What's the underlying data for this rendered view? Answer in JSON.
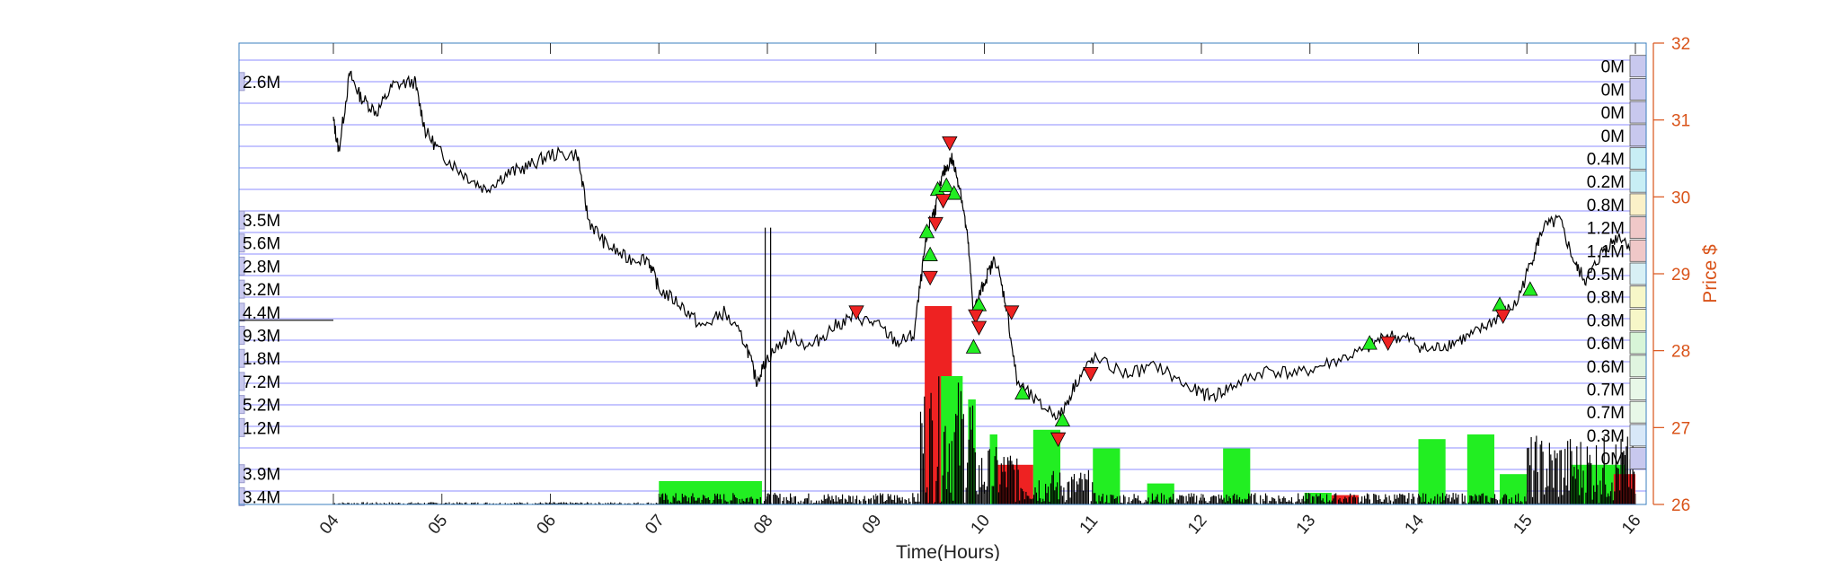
{
  "chart_data": {
    "type": "line",
    "xlabel": "Time(Hours)",
    "ylabel_right": "Price $",
    "x_ticks": [
      "04",
      "05",
      "06",
      "07",
      "08",
      "09",
      "10",
      "11",
      "12",
      "13",
      "14",
      "15",
      "16"
    ],
    "y_ticks_right": [
      "32",
      "31",
      "30",
      "29",
      "28",
      "27",
      "26"
    ],
    "ylim": [
      26,
      32
    ],
    "grid": true,
    "price_series": {
      "name": "",
      "points": [
        [
          4.0,
          31.0
        ],
        [
          4.05,
          30.6
        ],
        [
          4.15,
          31.6
        ],
        [
          4.25,
          31.3
        ],
        [
          4.4,
          31.1
        ],
        [
          4.55,
          31.45
        ],
        [
          4.75,
          31.5
        ],
        [
          4.85,
          30.85
        ],
        [
          5.0,
          30.55
        ],
        [
          5.2,
          30.3
        ],
        [
          5.4,
          30.1
        ],
        [
          5.6,
          30.3
        ],
        [
          5.8,
          30.4
        ],
        [
          6.0,
          30.55
        ],
        [
          6.25,
          30.55
        ],
        [
          6.35,
          29.7
        ],
        [
          6.5,
          29.4
        ],
        [
          6.7,
          29.2
        ],
        [
          6.9,
          29.2
        ],
        [
          7.0,
          28.8
        ],
        [
          7.2,
          28.6
        ],
        [
          7.4,
          28.3
        ],
        [
          7.6,
          28.5
        ],
        [
          7.8,
          28.1
        ],
        [
          7.9,
          27.6
        ],
        [
          8.0,
          27.9
        ],
        [
          8.2,
          28.2
        ],
        [
          8.4,
          28.05
        ],
        [
          8.6,
          28.3
        ],
        [
          8.8,
          28.45
        ],
        [
          9.0,
          28.35
        ],
        [
          9.2,
          28.1
        ],
        [
          9.35,
          28.2
        ],
        [
          9.45,
          29.3
        ],
        [
          9.5,
          29.7
        ],
        [
          9.55,
          29.85
        ],
        [
          9.62,
          30.3
        ],
        [
          9.7,
          30.5
        ],
        [
          9.78,
          30.1
        ],
        [
          9.85,
          29.4
        ],
        [
          9.9,
          28.5
        ],
        [
          10.0,
          28.9
        ],
        [
          10.1,
          29.2
        ],
        [
          10.2,
          28.6
        ],
        [
          10.3,
          27.6
        ],
        [
          10.5,
          27.3
        ],
        [
          10.7,
          27.15
        ],
        [
          10.85,
          27.6
        ],
        [
          11.0,
          27.9
        ],
        [
          11.3,
          27.7
        ],
        [
          11.6,
          27.8
        ],
        [
          11.9,
          27.5
        ],
        [
          12.1,
          27.4
        ],
        [
          12.3,
          27.55
        ],
        [
          12.6,
          27.75
        ],
        [
          12.9,
          27.7
        ],
        [
          13.2,
          27.85
        ],
        [
          13.5,
          28.0
        ],
        [
          13.7,
          28.2
        ],
        [
          13.9,
          28.15
        ],
        [
          14.1,
          28.0
        ],
        [
          14.3,
          28.1
        ],
        [
          14.5,
          28.2
        ],
        [
          14.7,
          28.4
        ],
        [
          14.9,
          28.6
        ],
        [
          15.05,
          29.2
        ],
        [
          15.15,
          29.6
        ],
        [
          15.3,
          29.7
        ],
        [
          15.45,
          29.1
        ],
        [
          15.55,
          28.9
        ],
        [
          15.7,
          29.3
        ],
        [
          15.85,
          29.5
        ],
        [
          16.0,
          29.3
        ]
      ]
    },
    "buy_signals": [
      [
        9.47,
        29.55
      ],
      [
        9.5,
        29.25
      ],
      [
        9.57,
        30.1
      ],
      [
        9.65,
        30.15
      ],
      [
        9.72,
        30.05
      ],
      [
        9.9,
        28.05
      ],
      [
        9.95,
        28.6
      ],
      [
        10.35,
        27.45
      ],
      [
        10.72,
        27.1
      ],
      [
        13.55,
        28.1
      ],
      [
        14.75,
        28.6
      ],
      [
        15.03,
        28.8
      ]
    ],
    "sell_signals": [
      [
        8.82,
        28.5
      ],
      [
        9.5,
        28.95
      ],
      [
        9.55,
        29.65
      ],
      [
        9.62,
        29.95
      ],
      [
        9.68,
        30.7
      ],
      [
        9.92,
        28.45
      ],
      [
        9.95,
        28.3
      ],
      [
        10.25,
        28.5
      ],
      [
        10.68,
        26.85
      ],
      [
        10.98,
        27.7
      ],
      [
        13.72,
        28.1
      ],
      [
        14.78,
        28.45
      ]
    ],
    "volume_profile_left": [
      {
        "price": 31.5,
        "label": "2.6M"
      },
      {
        "price": 29.7,
        "label": "3.5M"
      },
      {
        "price": 29.4,
        "label": "5.6M"
      },
      {
        "price": 29.1,
        "label": "2.8M"
      },
      {
        "price": 28.8,
        "label": "3.2M"
      },
      {
        "price": 28.5,
        "label": "4.4M"
      },
      {
        "price": 28.2,
        "label": "9.3M"
      },
      {
        "price": 27.9,
        "label": "1.8M"
      },
      {
        "price": 27.6,
        "label": "7.2M"
      },
      {
        "price": 27.3,
        "label": "5.2M"
      },
      {
        "price": 27.0,
        "label": "1.2M"
      },
      {
        "price": 26.4,
        "label": "3.9M"
      },
      {
        "price": 26.1,
        "label": "3.4M"
      }
    ],
    "volume_profile_right": [
      {
        "price": 31.7,
        "label": "0M"
      },
      {
        "price": 31.4,
        "label": "0M"
      },
      {
        "price": 31.1,
        "label": "0M"
      },
      {
        "price": 30.8,
        "label": "0M"
      },
      {
        "price": 30.5,
        "label": "0.4M"
      },
      {
        "price": 30.2,
        "label": "0.2M"
      },
      {
        "price": 29.9,
        "label": "0.8M"
      },
      {
        "price": 29.6,
        "label": "1.2M"
      },
      {
        "price": 29.3,
        "label": "1.1M"
      },
      {
        "price": 29.0,
        "label": "0.5M"
      },
      {
        "price": 28.7,
        "label": "0.8M"
      },
      {
        "price": 28.4,
        "label": "0.8M"
      },
      {
        "price": 28.1,
        "label": "0.6M"
      },
      {
        "price": 27.8,
        "label": "0.6M"
      },
      {
        "price": 27.5,
        "label": "0.7M"
      },
      {
        "price": 27.2,
        "label": "0.7M"
      },
      {
        "price": 26.9,
        "label": "0.3M"
      },
      {
        "price": 26.6,
        "label": "0M"
      }
    ],
    "volume_bars_block": [
      {
        "x0": 7.0,
        "x1": 7.95,
        "level": 0.1,
        "color": "#22ee22"
      },
      {
        "x0": 9.45,
        "x1": 9.7,
        "level": 0.85,
        "color": "#ee2222"
      },
      {
        "x0": 9.6,
        "x1": 9.8,
        "level": 0.55,
        "color": "#22ee22"
      },
      {
        "x0": 9.85,
        "x1": 9.92,
        "level": 0.45,
        "color": "#22ee22"
      },
      {
        "x0": 10.05,
        "x1": 10.12,
        "level": 0.3,
        "color": "#22ee22"
      },
      {
        "x0": 10.12,
        "x1": 10.45,
        "level": 0.17,
        "color": "#ee2222"
      },
      {
        "x0": 10.45,
        "x1": 10.7,
        "level": 0.32,
        "color": "#22ee22"
      },
      {
        "x0": 11.0,
        "x1": 11.25,
        "level": 0.24,
        "color": "#22ee22"
      },
      {
        "x0": 11.5,
        "x1": 11.75,
        "level": 0.09,
        "color": "#22ee22"
      },
      {
        "x0": 12.2,
        "x1": 12.45,
        "level": 0.24,
        "color": "#22ee22"
      },
      {
        "x0": 12.95,
        "x1": 13.2,
        "level": 0.05,
        "color": "#22ee22"
      },
      {
        "x0": 13.2,
        "x1": 13.45,
        "level": 0.04,
        "color": "#ee2222"
      },
      {
        "x0": 14.0,
        "x1": 14.25,
        "level": 0.28,
        "color": "#22ee22"
      },
      {
        "x0": 14.45,
        "x1": 14.7,
        "level": 0.3,
        "color": "#22ee22"
      },
      {
        "x0": 14.75,
        "x1": 15.0,
        "level": 0.13,
        "color": "#22ee22"
      },
      {
        "x0": 15.4,
        "x1": 15.65,
        "level": 0.17,
        "color": "#22ee22"
      },
      {
        "x0": 15.65,
        "x1": 15.9,
        "level": 0.17,
        "color": "#22ee22"
      },
      {
        "x0": 15.8,
        "x1": 16.0,
        "level": 0.13,
        "color": "#ee2222"
      }
    ],
    "colors": {
      "grid": "#7b7bff",
      "price_line": "#000000",
      "buy": "#22ee22",
      "sell": "#ee2222",
      "right_axis": "#d95319",
      "profile_box": "#9999cc"
    }
  }
}
